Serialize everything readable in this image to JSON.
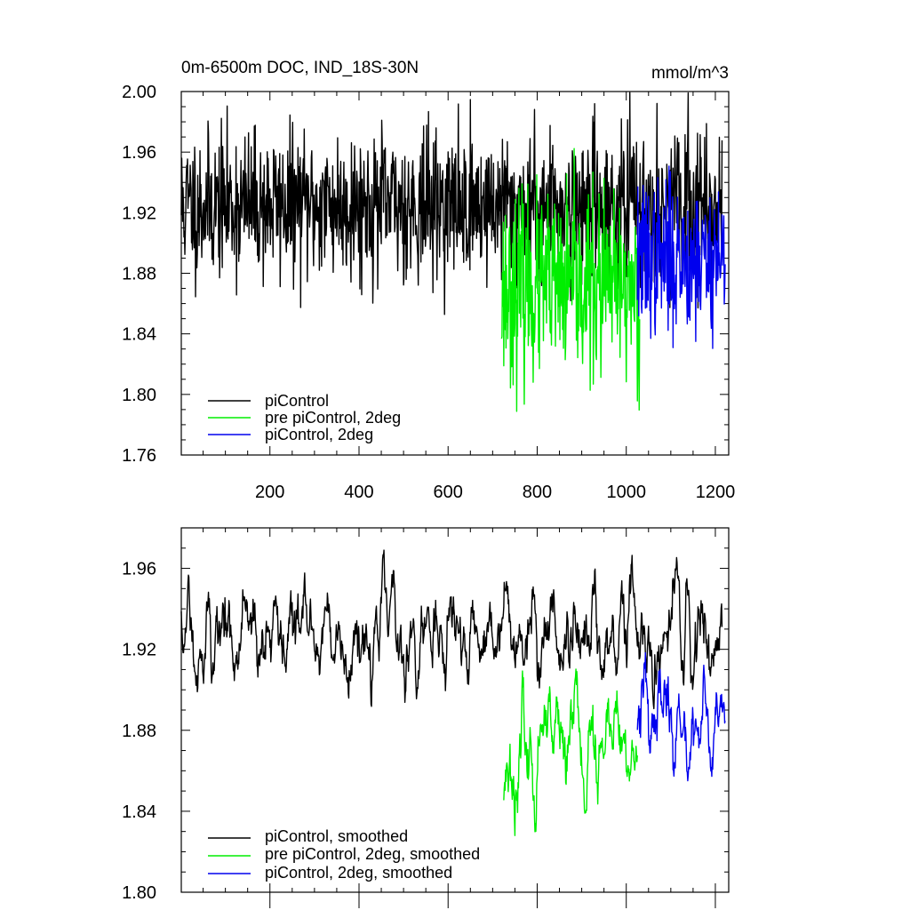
{
  "chart_data": [
    {
      "type": "line",
      "title": "0m-6500m DOC, IND_18S-30N",
      "units": "mmol/m^3",
      "xlim": [
        1,
        1230
      ],
      "ylim": [
        1.76,
        2.0
      ],
      "xticks": [
        200,
        400,
        600,
        800,
        1000,
        1200
      ],
      "xtick_labels": [
        "200",
        "400",
        "600",
        "800",
        "1000",
        "1200"
      ],
      "yticks": [
        1.76,
        1.8,
        1.84,
        1.88,
        1.92,
        1.96,
        2.0
      ],
      "ytick_labels": [
        "1.76",
        "1.80",
        "1.84",
        "1.88",
        "1.92",
        "1.96",
        "2.00"
      ],
      "legend_position": "bottom-left",
      "series": [
        {
          "name": "piControl",
          "color": "#000000",
          "x_start": 1,
          "x_end": 1215,
          "base": 1.925,
          "std": 0.024,
          "seed": 11
        },
        {
          "name": "pre piControl, 2deg",
          "color": "#00ee00",
          "x_start": 720,
          "x_end": 1030,
          "base": 1.87,
          "std": 0.03,
          "seed": 23
        },
        {
          "name": "piControl, 2deg",
          "color": "#0000ee",
          "x_start": 1025,
          "x_end": 1222,
          "base": 1.89,
          "std": 0.025,
          "seed": 37
        }
      ]
    },
    {
      "type": "line",
      "title": "",
      "units": "",
      "xlim": [
        1,
        1230
      ],
      "ylim": [
        1.8,
        1.98
      ],
      "xticks": [
        200,
        400,
        600,
        800,
        1000,
        1200
      ],
      "xtick_labels": [],
      "yticks": [
        1.8,
        1.84,
        1.88,
        1.92,
        1.96
      ],
      "ytick_labels": [
        "1.80",
        "1.84",
        "1.88",
        "1.92",
        "1.96"
      ],
      "legend_position": "bottom-left",
      "series": [
        {
          "name": "piControl, smoothed",
          "color": "#000000",
          "x_start": 1,
          "x_end": 1215,
          "base": 1.927,
          "std": 0.013,
          "seed": 11
        },
        {
          "name": "pre piControl, 2deg, smoothed",
          "color": "#00ee00",
          "x_start": 725,
          "x_end": 1025,
          "base": 1.872,
          "std": 0.016,
          "seed": 23
        },
        {
          "name": "piControl, 2deg, smoothed",
          "color": "#0000ee",
          "x_start": 1025,
          "x_end": 1222,
          "base": 1.885,
          "std": 0.013,
          "seed": 37
        }
      ]
    }
  ]
}
